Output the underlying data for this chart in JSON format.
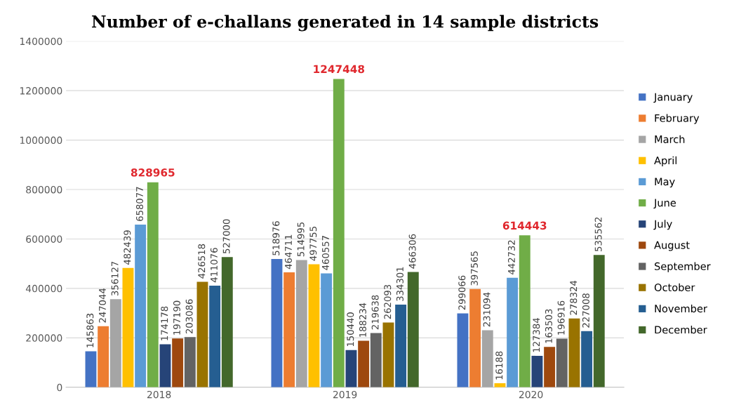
{
  "chart_data": {
    "type": "bar",
    "title": "Number of e-challans generated in 14 sample districts",
    "categories": [
      "2018",
      "2019",
      "2020"
    ],
    "series": [
      {
        "name": "January",
        "color": "#4472c4",
        "values": [
          145863,
          518976,
          299066
        ]
      },
      {
        "name": "February",
        "color": "#ed7d31",
        "values": [
          247044,
          464711,
          397565
        ]
      },
      {
        "name": "March",
        "color": "#a5a5a5",
        "values": [
          356127,
          514995,
          231094
        ]
      },
      {
        "name": "April",
        "color": "#ffc000",
        "values": [
          482439,
          497755,
          16188
        ]
      },
      {
        "name": "May",
        "color": "#5b9bd5",
        "values": [
          658077,
          460557,
          442732
        ]
      },
      {
        "name": "June",
        "color": "#70ad47",
        "values": [
          828965,
          1247448,
          614443
        ]
      },
      {
        "name": "July",
        "color": "#264478",
        "values": [
          174178,
          150440,
          127384
        ]
      },
      {
        "name": "August",
        "color": "#9e480e",
        "values": [
          197190,
          188234,
          163503
        ]
      },
      {
        "name": "September",
        "color": "#636363",
        "values": [
          203086,
          219638,
          196916
        ]
      },
      {
        "name": "October",
        "color": "#997300",
        "values": [
          426518,
          262093,
          278324
        ]
      },
      {
        "name": "November",
        "color": "#255e91",
        "values": [
          411076,
          334301,
          227008
        ]
      },
      {
        "name": "December",
        "color": "#43682b",
        "values": [
          527000,
          466306,
          535562
        ]
      }
    ],
    "ylim": [
      0,
      1400000
    ],
    "yticks": [
      0,
      200000,
      400000,
      600000,
      800000,
      1000000,
      1200000,
      1400000
    ],
    "grid": "y",
    "legend": "right",
    "data_labels": true
  }
}
